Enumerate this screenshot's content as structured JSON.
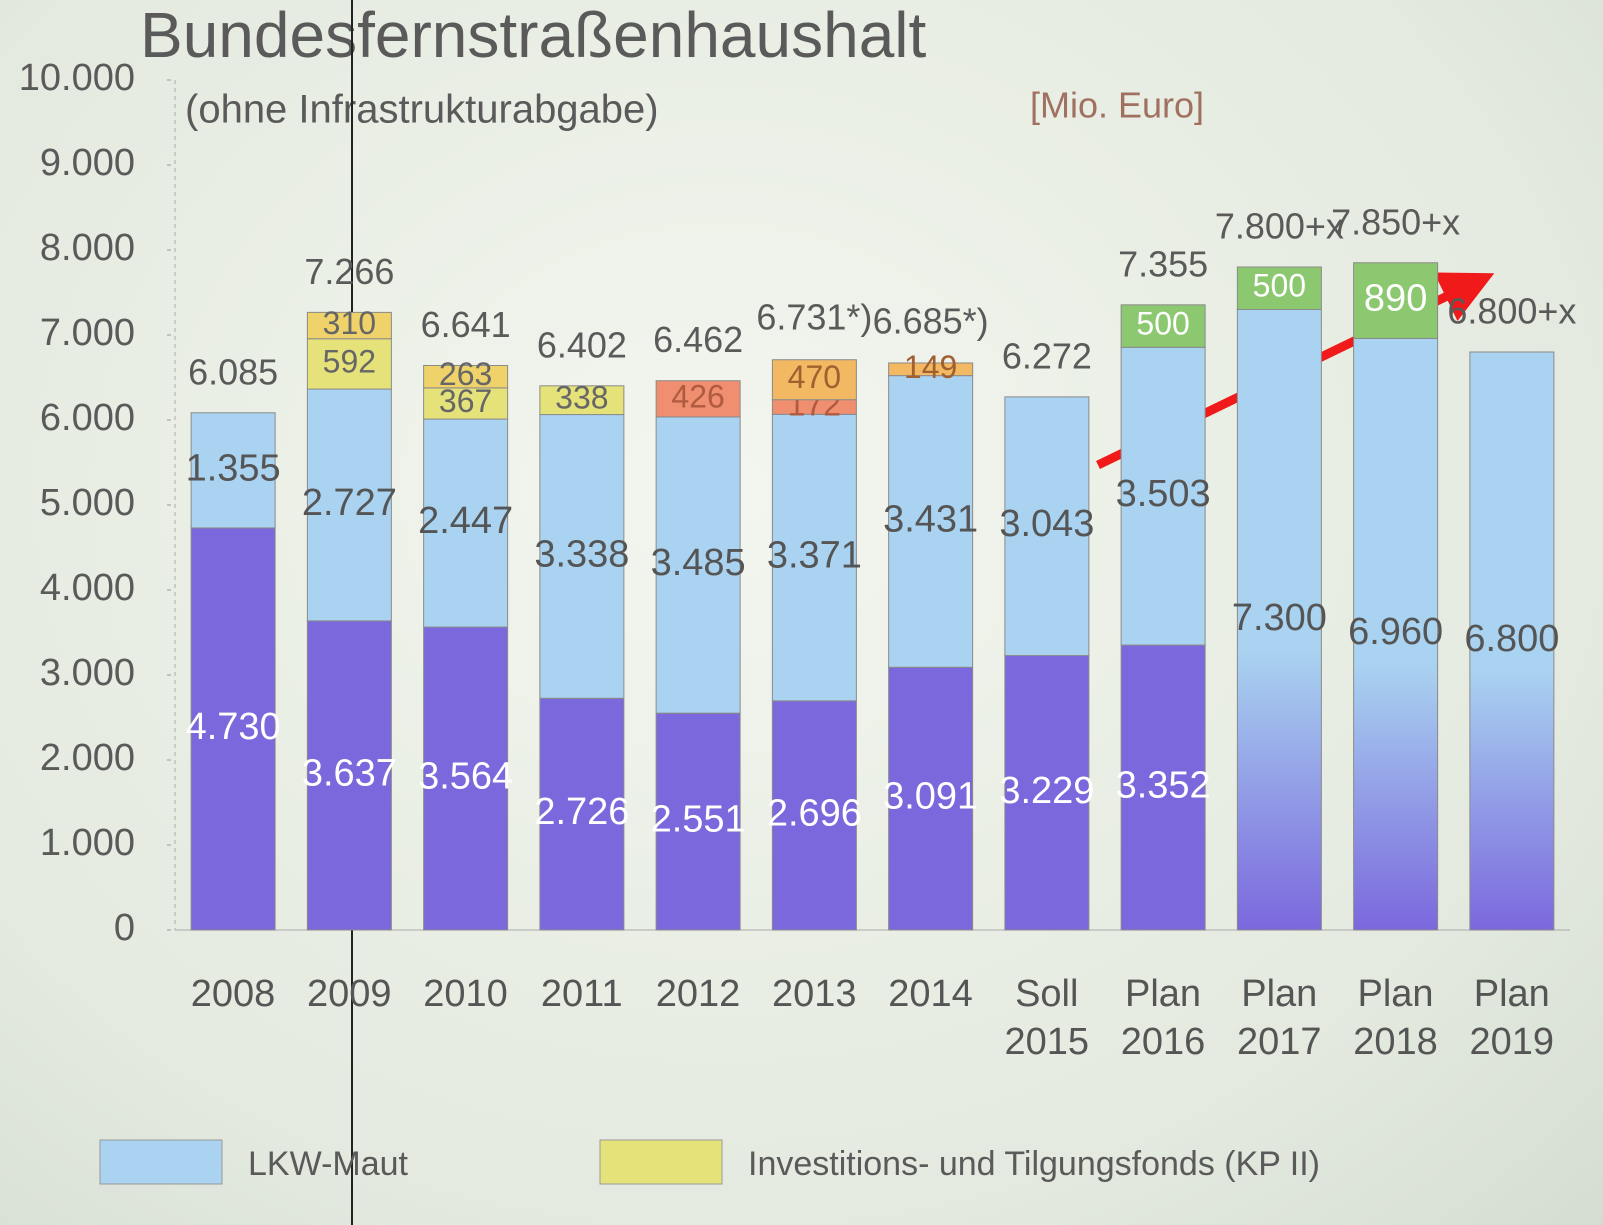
{
  "chart_data": {
    "type": "stacked-bar",
    "title": "Bundesfernstraßenhaushalt",
    "subtitle": "(ohne Infrastrukturabgabe)",
    "unit": "[Mio. Euro]",
    "categories": [
      "2008",
      "2009",
      "2010",
      "2011",
      "2012",
      "2013",
      "2014",
      "Soll 2015",
      "Plan 2016",
      "Plan 2017",
      "Plan 2018",
      "Plan 2019"
    ],
    "ylim": [
      0,
      10000
    ],
    "yticks": [
      0,
      {
        "value": 1000,
        "label": "1.000"
      },
      {
        "value": 2000,
        "label": "2.000"
      },
      {
        "value": 3000,
        "label": "3.000"
      },
      {
        "value": 4000,
        "label": "4.000"
      },
      {
        "value": 5000,
        "label": "5.000"
      },
      {
        "value": 6000,
        "label": "6.000"
      },
      {
        "value": 7000,
        "label": "7.000"
      },
      {
        "value": 8000,
        "label": "8.000"
      },
      {
        "value": 9000,
        "label": "9.000"
      },
      {
        "value": 10000,
        "label": "10.000"
      }
    ],
    "series": [
      {
        "color": "#7b68dd",
        "label_color": "#ffffff",
        "values": [
          4730,
          3637,
          3564,
          2726,
          2551,
          2696,
          3091,
          3229,
          3352,
          null,
          null,
          null
        ],
        "value_labels": [
          "4.730",
          "3.637",
          "3.564",
          "2.726",
          "2.551",
          "2.696",
          "3.091",
          "3.229",
          "3.352",
          null,
          null,
          null
        ]
      },
      {
        "name": "LKW-Maut",
        "color": "#a9d3f0",
        "label_color": "#555555",
        "values": [
          1355,
          2727,
          2447,
          3338,
          3485,
          3371,
          3431,
          3043,
          3503,
          null,
          null,
          null
        ],
        "value_labels": [
          "1.355",
          "2.727",
          "2.447",
          "3.338",
          "3.485",
          "3.371",
          "3.431",
          "3.043",
          "3.503",
          null,
          null,
          null
        ]
      },
      {
        "gradient": [
          "#a9d3f0",
          "#7b68dd"
        ],
        "label_color": "#555555",
        "values": [
          null,
          null,
          null,
          null,
          null,
          null,
          null,
          null,
          null,
          7300,
          6960,
          6800
        ],
        "value_labels": [
          null,
          null,
          null,
          null,
          null,
          null,
          null,
          null,
          null,
          "7.300",
          "6.960",
          "6.800"
        ]
      },
      {
        "name": "Investitions- und Tilgungsfonds (KP II)",
        "color": "#e6e27a",
        "label_color": "#666666",
        "values": [
          null,
          592,
          367,
          338,
          null,
          null,
          null,
          null,
          null,
          null,
          null,
          null
        ]
      },
      {
        "color": "#efd36a",
        "label_color": "#666666",
        "values": [
          null,
          310,
          263,
          null,
          null,
          null,
          null,
          null,
          null,
          null,
          null,
          null
        ]
      },
      {
        "color": "#ef8f70",
        "label_color": "#b05a40",
        "values": [
          null,
          null,
          null,
          null,
          426,
          172,
          null,
          null,
          null,
          null,
          null,
          null
        ]
      },
      {
        "color": "#f3b862",
        "label_color": "#a06030",
        "values": [
          null,
          null,
          null,
          null,
          null,
          470,
          149,
          null,
          null,
          null,
          null,
          null
        ]
      },
      {
        "color": "#8cc870",
        "label_color": "#ffffff",
        "values": [
          null,
          null,
          null,
          null,
          null,
          null,
          null,
          null,
          500,
          500,
          890,
          null
        ]
      }
    ],
    "totals": [
      {
        "value": 6085,
        "label": "6.085"
      },
      {
        "value": 7266,
        "label": "7.266"
      },
      {
        "value": 6641,
        "label": "6.641"
      },
      {
        "value": 6402,
        "label": "6.402"
      },
      {
        "value": 6462,
        "label": "6.462"
      },
      {
        "value": 6731,
        "label": "6.731*)"
      },
      {
        "value": 6685,
        "label": "6.685*)"
      },
      {
        "value": 6272,
        "label": "6.272"
      },
      {
        "value": 7355,
        "label": "7.355"
      },
      {
        "value": 7800,
        "label": "7.800+x"
      },
      {
        "value": 7850,
        "label": "7.850+x"
      },
      {
        "value": 6800,
        "label": "6.800+x"
      }
    ]
  }
}
